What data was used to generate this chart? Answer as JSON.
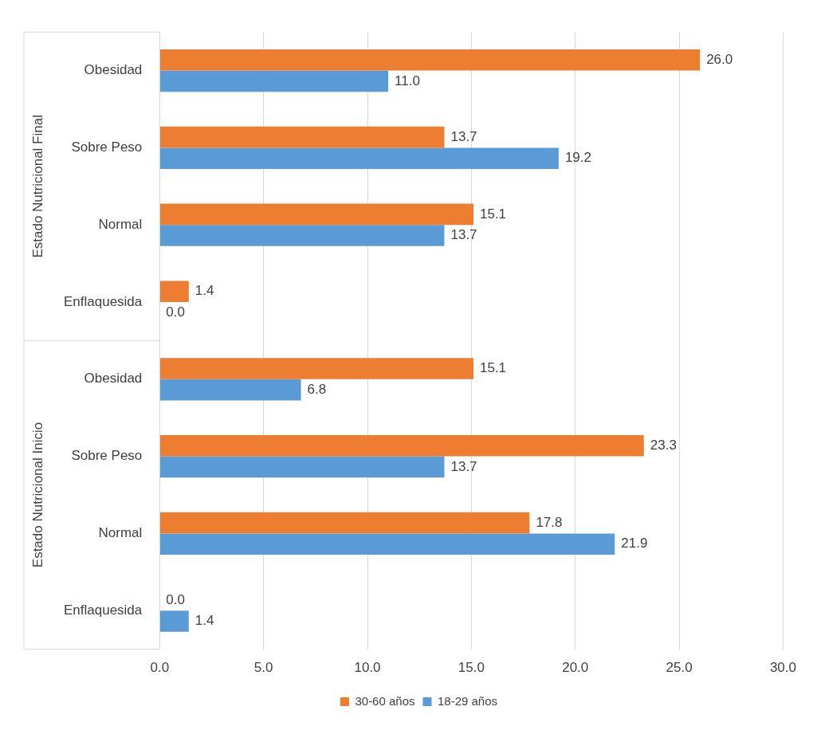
{
  "chart_data": {
    "type": "bar",
    "orientation": "horizontal",
    "categories": [
      "Obesidad",
      "Sobre Peso",
      "Normal",
      "Enflaquesida",
      "Obesidad",
      "Sobre Peso",
      "Normal",
      "Enflaquesida"
    ],
    "series": [
      {
        "name": "30-60 años",
        "color": "#ed7d31",
        "values": [
          26.0,
          13.7,
          15.1,
          1.4,
          15.1,
          23.3,
          17.8,
          0.0
        ],
        "value_labels": [
          "26.0",
          "13.7",
          "15.1",
          "1.4",
          "15.1",
          "23.3",
          "17.8",
          "0.0"
        ]
      },
      {
        "name": "18-29 años",
        "color": "#5b9bd5",
        "values": [
          11.0,
          19.2,
          13.7,
          0.0,
          6.8,
          13.7,
          21.9,
          1.4
        ],
        "value_labels": [
          "11.0",
          "19.2",
          "13.7",
          "0.0",
          "6.8",
          "13.7",
          "21.9",
          "1.4"
        ]
      }
    ],
    "xlim": [
      0,
      30
    ],
    "xticks": [
      {
        "value": 0,
        "label": "0.0"
      },
      {
        "value": 5,
        "label": "5.0"
      },
      {
        "value": 10,
        "label": "10.0"
      },
      {
        "value": 15,
        "label": "15.0"
      },
      {
        "value": 20,
        "label": "20.0"
      },
      {
        "value": 25,
        "label": "25.0"
      },
      {
        "value": 30,
        "label": "30.0"
      }
    ],
    "grid": "x",
    "legend": "bottom",
    "annotations": [
      "Estado Nutricional Final",
      "Estado Nutricional Inicio"
    ]
  }
}
